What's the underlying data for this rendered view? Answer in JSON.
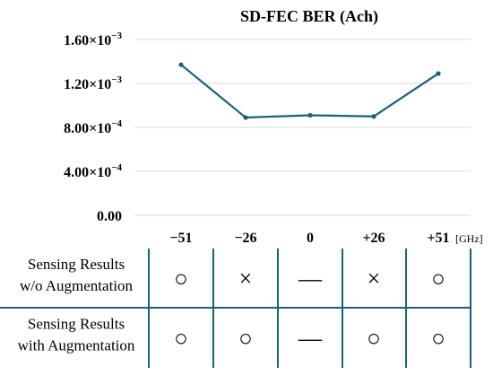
{
  "chart_data": {
    "type": "line",
    "title": "SD-FEC BER (Ach)",
    "x_unit": "[GHz]",
    "categories": [
      "−51",
      "−26",
      "0",
      "+26",
      "+51"
    ],
    "values": [
      0.00137,
      0.00089,
      0.00091,
      0.0009,
      0.00129
    ],
    "ylim": [
      0,
      0.0016
    ],
    "yticks": [
      {
        "value": 0.0,
        "mantissa": "0.00",
        "exponent": ""
      },
      {
        "value": 0.0004,
        "mantissa": "4.00",
        "exponent": "−4"
      },
      {
        "value": 0.0008,
        "mantissa": "8.00",
        "exponent": "−4"
      },
      {
        "value": 0.0012,
        "mantissa": "1.20",
        "exponent": "−3"
      },
      {
        "value": 0.0016,
        "mantissa": "1.60",
        "exponent": "−3"
      }
    ],
    "grid": true,
    "line_color": "#1f5f7a",
    "grid_color": "#d9d9d9"
  },
  "table": {
    "border_color": "#1f5f7a",
    "rows": [
      {
        "label_lines": [
          "Sensing Results",
          "w/o Augmentation"
        ],
        "cells": [
          "○",
          "×",
          "—",
          "×",
          "○"
        ]
      },
      {
        "label_lines": [
          "Sensing Results",
          "with Augmentation"
        ],
        "cells": [
          "○",
          "○",
          "—",
          "○",
          "○"
        ]
      }
    ]
  }
}
